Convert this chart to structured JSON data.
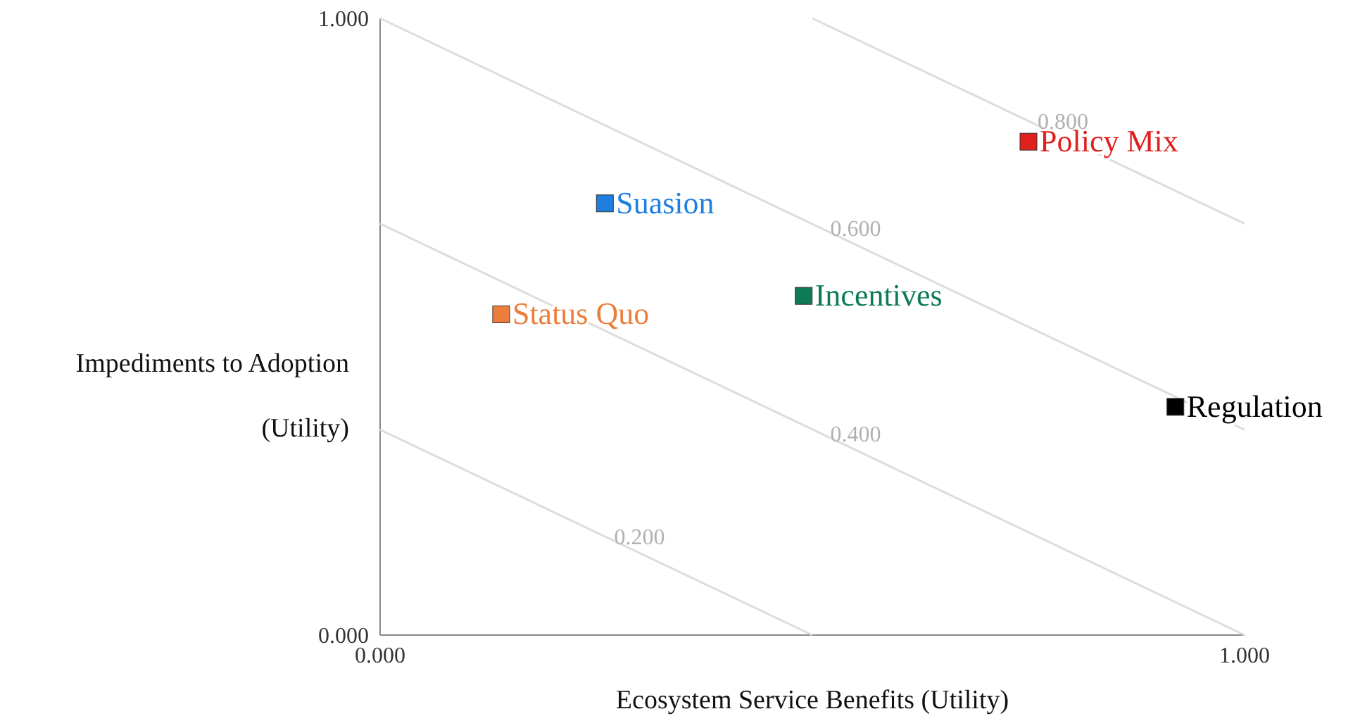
{
  "chart_data": {
    "type": "scatter",
    "xlabel": "Ecosystem Service Benefits (Utility)",
    "ylabel": "Impediments to Adoption\n(Utility)",
    "xlim": [
      0,
      1
    ],
    "ylim": [
      0,
      1
    ],
    "xticks": [
      {
        "value": 0,
        "label": "0.000"
      },
      {
        "value": 1,
        "label": "1.000"
      }
    ],
    "yticks": [
      {
        "value": 0,
        "label": "0.000"
      },
      {
        "value": 1,
        "label": "1.000"
      }
    ],
    "grid": false,
    "legend": false,
    "marker": "square",
    "series": [
      {
        "type": "line",
        "color": "#dddddd",
        "marker": "none",
        "x": [
          0,
          0.5
        ],
        "values": [
          0.333,
          0
        ]
      },
      {
        "type": "line",
        "color": "#dddddd",
        "marker": "none",
        "x": [
          0,
          1
        ],
        "values": [
          0.667,
          0
        ]
      },
      {
        "type": "line",
        "color": "#dddddd",
        "marker": "none",
        "x": [
          0,
          1
        ],
        "values": [
          1,
          0.333
        ]
      },
      {
        "type": "line",
        "color": "#dddddd",
        "marker": "none",
        "x": [
          0.5,
          1
        ],
        "values": [
          1,
          0.667
        ]
      },
      {
        "name": "Status Quo",
        "color": "#ed7d3a",
        "x": [
          0.14
        ],
        "values": [
          0.52
        ]
      },
      {
        "name": "Suasion",
        "color": "#1f7fe0",
        "x": [
          0.26
        ],
        "values": [
          0.7
        ]
      },
      {
        "name": "Incentives",
        "color": "#0e7a56",
        "x": [
          0.49
        ],
        "values": [
          0.55
        ]
      },
      {
        "name": "Policy Mix",
        "color": "#e0201c",
        "x": [
          0.75
        ],
        "values": [
          0.8
        ]
      },
      {
        "name": "Regulation",
        "color": "#000000",
        "x": [
          0.92
        ],
        "values": [
          0.37
        ]
      }
    ],
    "annotations": [
      {
        "text": "0.200",
        "x": 0.3,
        "y": 0.133
      },
      {
        "text": "0.400",
        "x": 0.55,
        "y": 0.3
      },
      {
        "text": "0.600",
        "x": 0.55,
        "y": 0.633
      },
      {
        "text": "0.800",
        "x": 0.79,
        "y": 0.807
      }
    ]
  }
}
